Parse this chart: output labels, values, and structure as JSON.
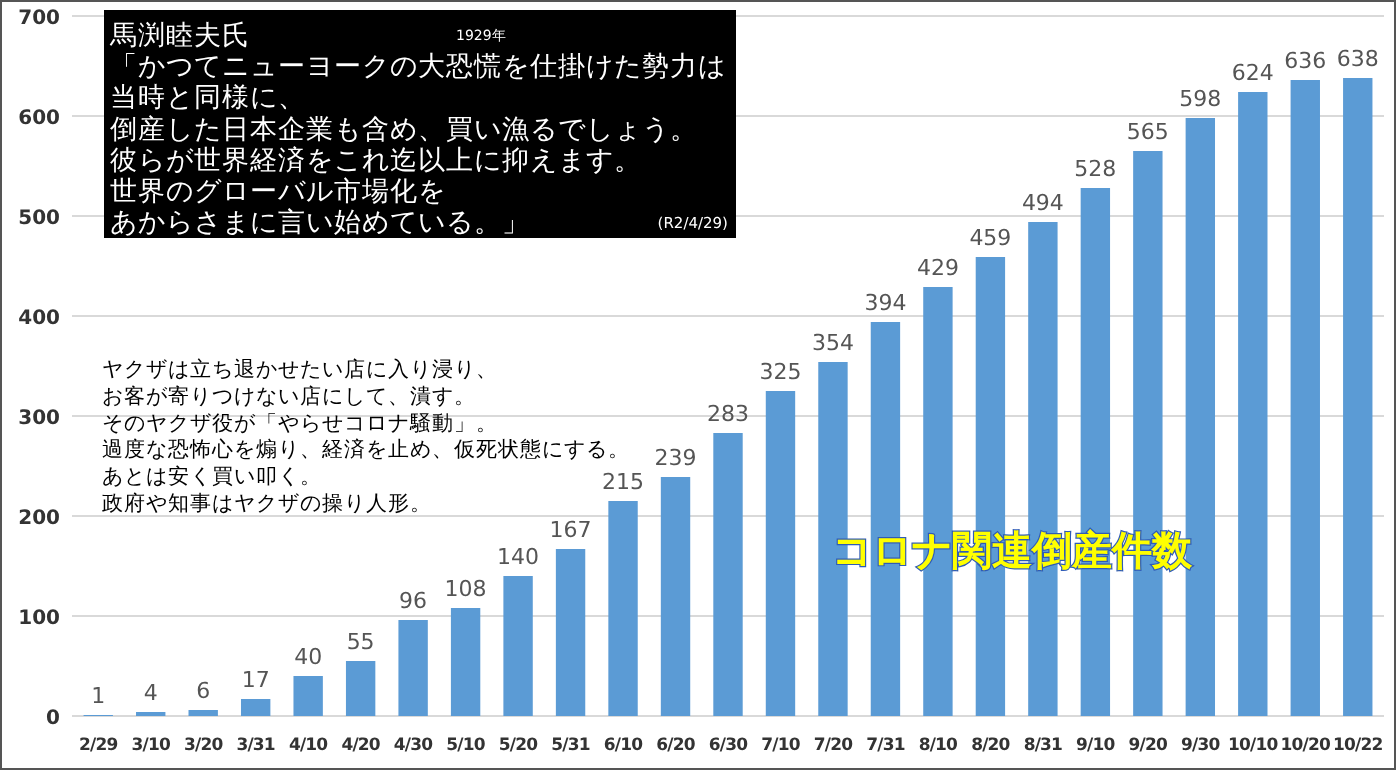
{
  "chart_data": {
    "type": "bar",
    "title": "コロナ関連倒産件数",
    "categories": [
      "2/29",
      "3/10",
      "3/20",
      "3/31",
      "4/10",
      "4/20",
      "4/30",
      "5/10",
      "5/20",
      "5/31",
      "6/10",
      "6/20",
      "6/30",
      "7/10",
      "7/20",
      "7/31",
      "8/10",
      "8/20",
      "8/31",
      "9/10",
      "9/20",
      "9/30",
      "10/10",
      "10/20",
      "10/22"
    ],
    "values": [
      1,
      4,
      6,
      17,
      40,
      55,
      96,
      108,
      140,
      167,
      215,
      239,
      283,
      325,
      354,
      394,
      429,
      459,
      494,
      528,
      565,
      598,
      624,
      636,
      638
    ],
    "color": "#5b9bd5",
    "data_labels": true,
    "ylim": [
      0,
      700
    ],
    "yticks": [
      0,
      100,
      200,
      300,
      400,
      500,
      600,
      700
    ],
    "grid": "y",
    "annotations": [
      "馬渕睦夫氏",
      "「かつてニューヨークの大恐慌を仕掛けた勢力は",
      "当時と同様に、",
      "倒産した日本企業も含め、買い漁るでしょう。",
      "彼らが世界経済をこれ迄以上に抑えます。",
      "世界のグローバル市場化を",
      "あからさまに言い始めている。」",
      "1929年",
      "(R2/4/29)",
      "ヤクザは立ち退かせたい店に入り浸り、",
      "お客が寄りつけない店にして、潰す。",
      "そのヤクザ役が「やらせコロナ騒動」。",
      "過度な恐怖心を煽り、経済を止め、仮死状態にする。",
      "あとは安く買い叩く。",
      "政府や知事はヤクザの操り人形。"
    ]
  }
}
